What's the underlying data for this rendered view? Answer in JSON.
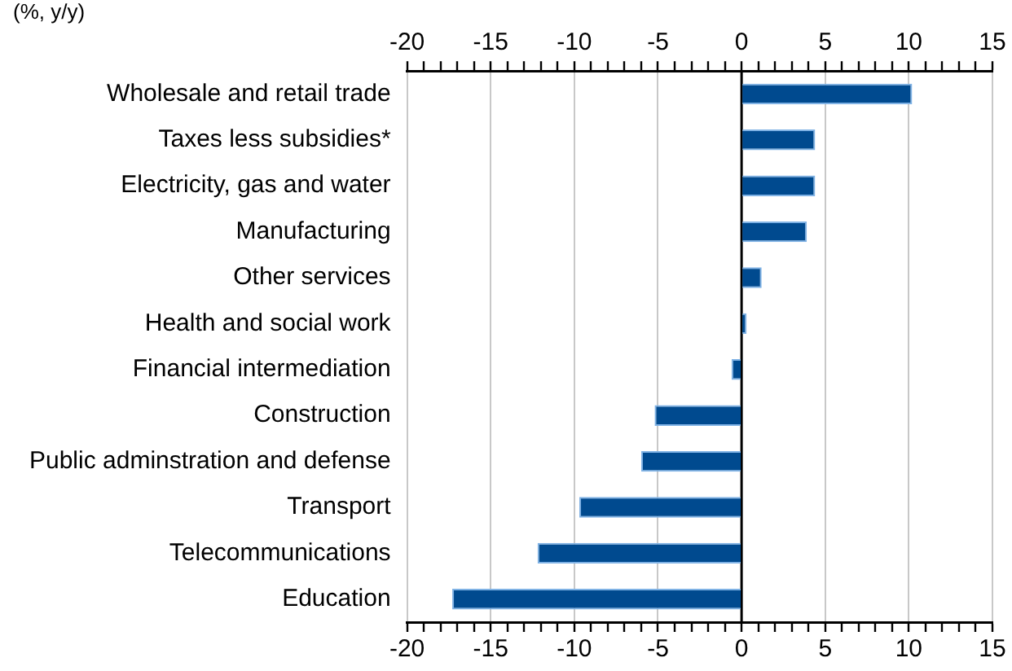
{
  "chart_data": {
    "type": "bar",
    "orientation": "horizontal",
    "title": "(%, y/y)",
    "categories": [
      "Wholesale and retail trade",
      "Taxes less subsidies*",
      "Electricity, gas and water",
      "Manufacturing",
      "Other services",
      "Health and social work",
      "Financial intermediation",
      "Construction",
      "Public adminstration and defense",
      "Transport",
      "Telecommunications",
      "Education"
    ],
    "values": [
      10.2,
      4.4,
      4.4,
      3.9,
      1.2,
      0.3,
      -0.6,
      -5.2,
      -6.0,
      -9.7,
      -12.2,
      -17.3
    ],
    "color": "#004a8f",
    "xlim": [
      -20,
      15
    ],
    "xticks": [
      -20,
      {
        "value": -19,
        "label": null
      },
      {
        "value": -18,
        "label": null
      },
      {
        "value": -17,
        "label": null
      },
      {
        "value": -16,
        "label": null
      },
      -15,
      {
        "value": -14,
        "label": null
      },
      {
        "value": -13,
        "label": null
      },
      {
        "value": -12,
        "label": null
      },
      {
        "value": -11,
        "label": null
      },
      -10,
      {
        "value": -9,
        "label": null
      },
      {
        "value": -8,
        "label": null
      },
      {
        "value": -7,
        "label": null
      },
      {
        "value": -6,
        "label": null
      },
      -5,
      {
        "value": -4,
        "label": null
      },
      {
        "value": -3,
        "label": null
      },
      {
        "value": -2,
        "label": null
      },
      {
        "value": -1,
        "label": null
      },
      0,
      {
        "value": 1,
        "label": null
      },
      {
        "value": 2,
        "label": null
      },
      {
        "value": 3,
        "label": null
      },
      {
        "value": 4,
        "label": null
      },
      5,
      {
        "value": 6,
        "label": null
      },
      {
        "value": 7,
        "label": null
      },
      {
        "value": 8,
        "label": null
      },
      {
        "value": 9,
        "label": null
      },
      10,
      {
        "value": 11,
        "label": null
      },
      {
        "value": 12,
        "label": null
      },
      {
        "value": 13,
        "label": null
      },
      {
        "value": 14,
        "label": null
      },
      15
    ],
    "x2lim": [
      -20,
      15
    ],
    "x2ticks": [
      -20,
      {
        "value": -19,
        "label": null
      },
      {
        "value": -18,
        "label": null
      },
      {
        "value": -17,
        "label": null
      },
      {
        "value": -16,
        "label": null
      },
      -15,
      {
        "value": -14,
        "label": null
      },
      {
        "value": -13,
        "label": null
      },
      {
        "value": -12,
        "label": null
      },
      {
        "value": -11,
        "label": null
      },
      -10,
      {
        "value": -9,
        "label": null
      },
      {
        "value": -8,
        "label": null
      },
      {
        "value": -7,
        "label": null
      },
      {
        "value": -6,
        "label": null
      },
      -5,
      {
        "value": -4,
        "label": null
      },
      {
        "value": -3,
        "label": null
      },
      {
        "value": -2,
        "label": null
      },
      {
        "value": -1,
        "label": null
      },
      0,
      {
        "value": 1,
        "label": null
      },
      {
        "value": 2,
        "label": null
      },
      {
        "value": 3,
        "label": null
      },
      {
        "value": 4,
        "label": null
      },
      5,
      {
        "value": 6,
        "label": null
      },
      {
        "value": 7,
        "label": null
      },
      {
        "value": 8,
        "label": null
      },
      {
        "value": 9,
        "label": null
      },
      10,
      {
        "value": 11,
        "label": null
      },
      {
        "value": 12,
        "label": null
      },
      {
        "value": 13,
        "label": null
      },
      {
        "value": 14,
        "label": null
      },
      15
    ],
    "grid": "x",
    "legend": false
  }
}
